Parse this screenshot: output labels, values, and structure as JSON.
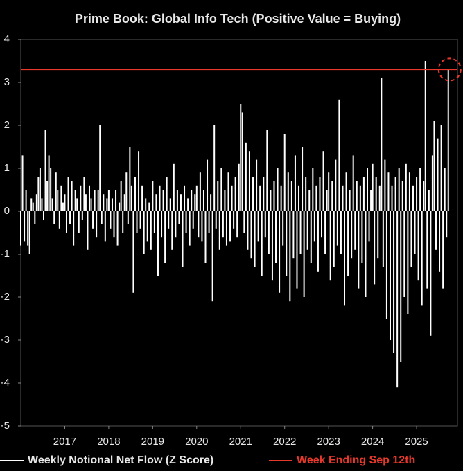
{
  "chart_data": {
    "type": "bar",
    "title": "Prime Book: Global Info Tech (Positive Value = Buying)",
    "x": [
      2016,
      2016.04,
      2016.08,
      2016.12,
      2016.16,
      2016.2,
      2016.24,
      2016.28,
      2016.32,
      2016.36,
      2016.4,
      2016.44,
      2016.48,
      2016.52,
      2016.56,
      2016.6,
      2016.64,
      2016.68,
      2016.72,
      2016.76,
      2016.8,
      2016.84,
      2016.88,
      2016.92,
      2016.96,
      2017,
      2017.04,
      2017.08,
      2017.12,
      2017.16,
      2017.2,
      2017.24,
      2017.28,
      2017.32,
      2017.36,
      2017.4,
      2017.44,
      2017.48,
      2017.52,
      2017.56,
      2017.6,
      2017.64,
      2017.68,
      2017.72,
      2017.76,
      2017.8,
      2017.84,
      2017.88,
      2017.92,
      2017.96,
      2018,
      2018.04,
      2018.08,
      2018.12,
      2018.16,
      2018.2,
      2018.24,
      2018.28,
      2018.32,
      2018.36,
      2018.4,
      2018.44,
      2018.48,
      2018.52,
      2018.56,
      2018.6,
      2018.64,
      2018.68,
      2018.72,
      2018.76,
      2018.8,
      2018.84,
      2018.88,
      2018.92,
      2018.96,
      2019,
      2019.04,
      2019.08,
      2019.12,
      2019.16,
      2019.2,
      2019.24,
      2019.28,
      2019.32,
      2019.36,
      2019.4,
      2019.44,
      2019.48,
      2019.52,
      2019.56,
      2019.6,
      2019.64,
      2019.68,
      2019.72,
      2019.76,
      2019.8,
      2019.84,
      2019.88,
      2019.92,
      2019.96,
      2020,
      2020.04,
      2020.08,
      2020.12,
      2020.16,
      2020.2,
      2020.24,
      2020.28,
      2020.32,
      2020.36,
      2020.4,
      2020.44,
      2020.48,
      2020.52,
      2020.56,
      2020.6,
      2020.64,
      2020.68,
      2020.72,
      2020.76,
      2020.8,
      2020.84,
      2020.88,
      2020.92,
      2020.96,
      2021,
      2021.04,
      2021.08,
      2021.12,
      2021.16,
      2021.2,
      2021.24,
      2021.28,
      2021.32,
      2021.36,
      2021.4,
      2021.44,
      2021.48,
      2021.52,
      2021.56,
      2021.6,
      2021.64,
      2021.68,
      2021.72,
      2021.76,
      2021.8,
      2021.84,
      2021.88,
      2021.92,
      2021.96,
      2022,
      2022.04,
      2022.08,
      2022.12,
      2022.16,
      2022.2,
      2022.24,
      2022.28,
      2022.32,
      2022.36,
      2022.4,
      2022.44,
      2022.48,
      2022.52,
      2022.56,
      2022.6,
      2022.64,
      2022.68,
      2022.72,
      2022.76,
      2022.8,
      2022.84,
      2022.88,
      2022.92,
      2022.96,
      2023,
      2023.04,
      2023.08,
      2023.12,
      2023.16,
      2023.2,
      2023.24,
      2023.28,
      2023.32,
      2023.36,
      2023.4,
      2023.44,
      2023.48,
      2023.52,
      2023.56,
      2023.6,
      2023.64,
      2023.68,
      2023.72,
      2023.76,
      2023.8,
      2023.84,
      2023.88,
      2023.92,
      2023.96,
      2024,
      2024.04,
      2024.08,
      2024.12,
      2024.16,
      2024.2,
      2024.24,
      2024.28,
      2024.32,
      2024.36,
      2024.4,
      2024.44,
      2024.48,
      2024.52,
      2024.56,
      2024.6,
      2024.64,
      2024.68,
      2024.72,
      2024.76,
      2024.8,
      2024.84,
      2024.88,
      2024.92,
      2024.96,
      2025,
      2025.04,
      2025.08,
      2025.12,
      2025.16,
      2025.2,
      2025.24,
      2025.28,
      2025.32,
      2025.36,
      2025.4,
      2025.44,
      2025.48,
      2025.52,
      2025.56,
      2025.6,
      2025.64,
      2025.68,
      2025.72
    ],
    "series": [
      {
        "name": "Weekly Notional Net Flow (Z Score)",
        "color": "#ffffff",
        "values": [
          -0.8,
          1.3,
          -0.7,
          0.5,
          -0.8,
          -1.0,
          0.3,
          0.2,
          -0.3,
          0.4,
          0.8,
          1.0,
          0.3,
          -0.2,
          1.9,
          0.7,
          1.3,
          1.0,
          0.3,
          -0.3,
          0.9,
          0.5,
          -0.4,
          0.6,
          0.2,
          0.4,
          -0.5,
          0.8,
          -0.3,
          0.7,
          -0.8,
          0.5,
          0.3,
          -0.5,
          0.6,
          -0.2,
          0.8,
          0.4,
          -0.9,
          0.6,
          0.3,
          -0.4,
          0.5,
          -0.6,
          0.5,
          2.0,
          -0.3,
          0.4,
          -0.7,
          0.3,
          0.5,
          -0.4,
          0.3,
          -0.6,
          0.5,
          -0.8,
          0.2,
          0.7,
          -0.5,
          0.4,
          0.9,
          -0.3,
          1.5,
          0.6,
          -1.9,
          0.8,
          -0.5,
          1.4,
          -0.4,
          0.6,
          -1.0,
          0.3,
          -0.7,
          0.2,
          -0.9,
          0.7,
          -0.5,
          0.4,
          -1.5,
          0.6,
          -0.6,
          0.5,
          -1.2,
          0.8,
          -0.4,
          0.3,
          -0.9,
          1.1,
          -0.6,
          0.5,
          -0.3,
          0.4,
          -1.3,
          0.6,
          -0.5,
          0.3,
          -0.8,
          0.5,
          -0.4,
          0.4,
          0.6,
          -0.6,
          0.9,
          -0.7,
          0.5,
          -1.2,
          1.2,
          -0.5,
          0.4,
          -2.1,
          2.0,
          -0.4,
          0.7,
          -0.9,
          1.0,
          -0.6,
          0.5,
          -0.8,
          0.9,
          -0.7,
          0.6,
          -0.4,
          0.8,
          -0.6,
          1.1,
          2.5,
          2.3,
          -0.5,
          1.6,
          -0.9,
          1.4,
          -1.1,
          0.8,
          -1.3,
          1.2,
          -0.7,
          0.6,
          -1.5,
          0.8,
          -0.6,
          1.9,
          -1.0,
          0.5,
          -1.6,
          0.7,
          -1.2,
          1.0,
          -1.9,
          0.6,
          -0.8,
          1.8,
          -1.5,
          0.9,
          -2.1,
          0.7,
          -1.1,
          1.3,
          -1.8,
          0.6,
          -1.0,
          1.5,
          -2.0,
          0.8,
          -0.9,
          0.5,
          -1.2,
          1.0,
          -0.7,
          0.6,
          -1.4,
          0.8,
          -0.6,
          1.4,
          -1.0,
          0.5,
          0.9,
          -1.6,
          0.7,
          -1.3,
          1.2,
          -0.8,
          2.6,
          -1.0,
          0.6,
          -2.2,
          0.9,
          -1.5,
          0.5,
          -1.1,
          1.3,
          -0.9,
          0.7,
          -1.8,
          0.6,
          -1.2,
          0.8,
          -2.0,
          1.0,
          -0.7,
          0.5,
          1.1,
          -1.7,
          0.8,
          -1.1,
          0.6,
          3.1,
          -1.3,
          1.2,
          -2.5,
          0.9,
          -3.0,
          0.6,
          -3.3,
          0.8,
          -4.1,
          1.0,
          -3.5,
          0.7,
          -2.0,
          1.1,
          -2.4,
          0.9,
          -1.3,
          0.6,
          -1.0,
          0.8,
          -1.6,
          1.0,
          -2.2,
          0.7,
          3.5,
          -1.8,
          0.5,
          -2.9,
          1.3,
          2.1,
          -0.9,
          1.7,
          -1.4,
          2.0,
          -1.8,
          1.0,
          -0.6,
          3.3
        ]
      }
    ],
    "reference_line": {
      "name": "Week Ending Sep 12th",
      "value": 3.3,
      "color": "#e8382c"
    },
    "xlim": [
      2016,
      2025.85
    ],
    "xticks": [
      2017,
      2018,
      2019,
      2020,
      2021,
      2022,
      2023,
      2024,
      2025
    ],
    "ylim": [
      -5,
      4
    ],
    "yticks": [
      -5,
      -4,
      -3,
      -2,
      -1,
      0,
      1,
      2,
      3,
      4
    ]
  }
}
